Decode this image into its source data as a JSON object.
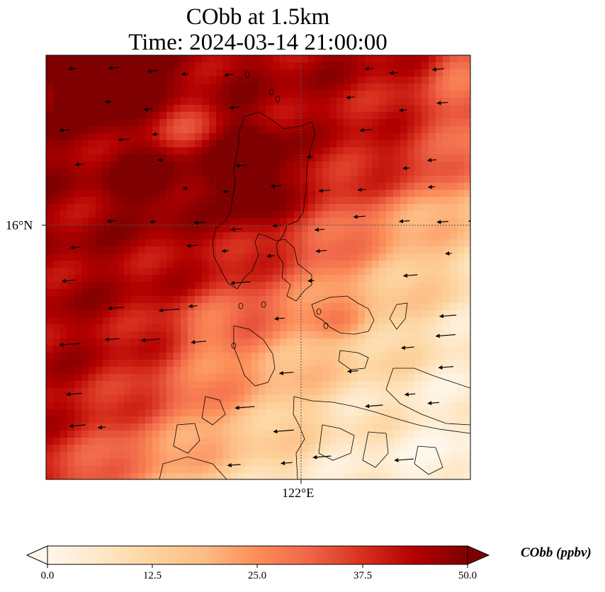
{
  "title": {
    "line1": "CObb at 1.5km",
    "line2": "Time: 2024-03-14 21:00:00"
  },
  "map": {
    "lat_label": "16°N",
    "lon_label": "122°E",
    "gridlines": "dotted",
    "field": "CObb concentration",
    "overlay": "wind vectors, coastlines"
  },
  "colorbar": {
    "label": "CObb (ppbv)",
    "ticks": [
      "0.0",
      "12.5",
      "25.0",
      "37.5",
      "50.0"
    ],
    "min": 0,
    "max": 50,
    "extend": "both",
    "colormap": "OrRd",
    "colors": [
      "#fff7ec",
      "#fee8c8",
      "#fdd49e",
      "#fdbb84",
      "#fc8d59",
      "#ef6548",
      "#d7301f",
      "#b30000",
      "#7f0000"
    ]
  }
}
